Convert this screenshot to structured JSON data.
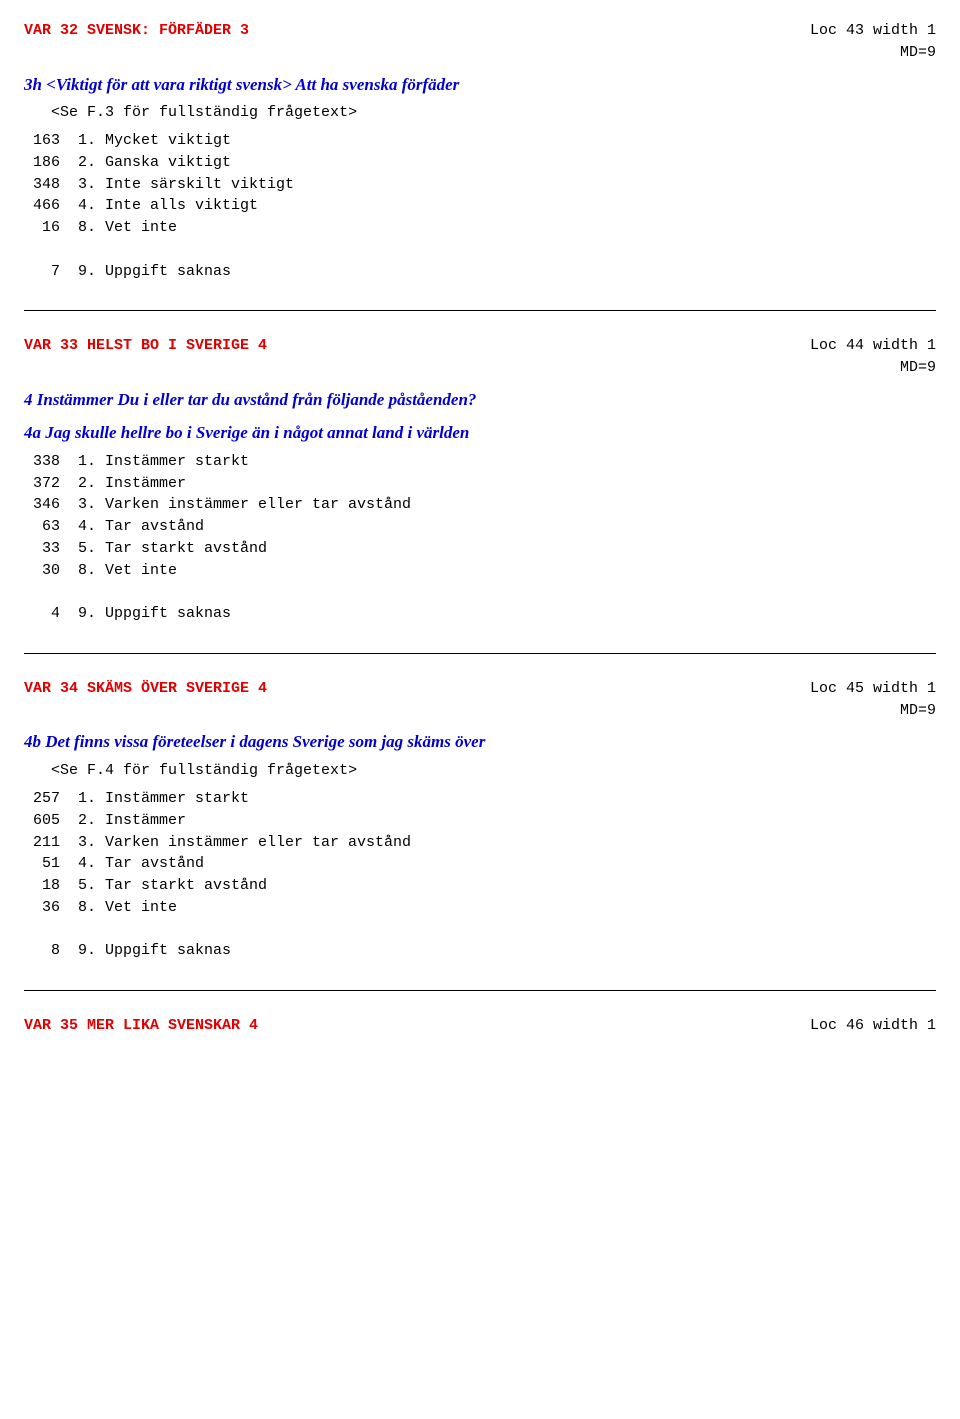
{
  "var32": {
    "header_left": "VAR 32  SVENSK: FÖRFÄDER       3",
    "header_loc": "Loc 43 width 1",
    "header_md": "MD=9",
    "q_prefix": "3h ",
    "q_text": "<Viktigt för att vara riktigt svensk> Att ha svenska förfäder",
    "see": "<Se F.3 för fullständig frågetext>",
    "rows": [
      " 163  1. Mycket viktigt",
      " 186  2. Ganska viktigt",
      " 348  3. Inte särskilt viktigt",
      " 466  4. Inte alls viktigt",
      "  16  8. Vet inte",
      "",
      "   7  9. Uppgift saknas"
    ]
  },
  "var33": {
    "header_left": "VAR 33  HELST BO I SVERIGE     4",
    "header_loc": "Loc 44 width 1",
    "header_md": "MD=9",
    "q1_prefix": "4 ",
    "q1_text": "Instämmer Du i eller tar du avstånd från följande påståenden?",
    "q2_prefix": "4a ",
    "q2_text": "Jag skulle hellre bo i Sverige än i något annat land i världen",
    "rows": [
      " 338  1. Instämmer starkt",
      " 372  2. Instämmer",
      " 346  3. Varken instämmer eller tar avstånd",
      "  63  4. Tar avstånd",
      "  33  5. Tar starkt avstånd",
      "  30  8. Vet inte",
      "",
      "   4  9. Uppgift saknas"
    ]
  },
  "var34": {
    "header_left": "VAR 34  SKÄMS ÖVER SVERIGE     4",
    "header_loc": "Loc 45 width 1",
    "header_md": "MD=9",
    "q_prefix": "4b ",
    "q_text": "Det finns vissa företeelser i dagens Sverige som jag skäms över",
    "see": "<Se F.4 för fullständig frågetext>",
    "rows": [
      " 257  1. Instämmer starkt",
      " 605  2. Instämmer",
      " 211  3. Varken instämmer eller tar avstånd",
      "  51  4. Tar avstånd",
      "  18  5. Tar starkt avstånd",
      "  36  8. Vet inte",
      "",
      "   8  9. Uppgift saknas"
    ]
  },
  "var35": {
    "header_left": "VAR 35  MER LIKA SVENSKAR      4",
    "header_loc": "Loc 46 width 1"
  }
}
